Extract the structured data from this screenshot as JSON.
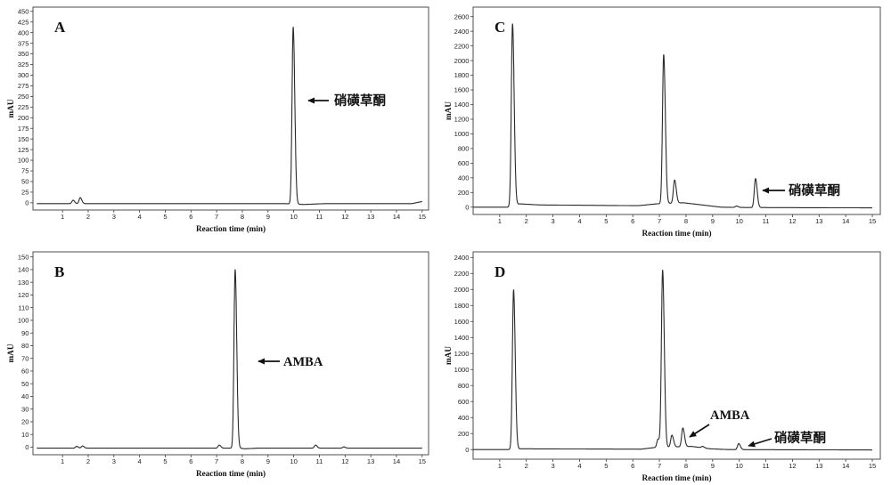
{
  "chart_data": [
    {
      "panel_label": "A",
      "type": "line",
      "xlabel": "Reaction time (min)",
      "ylabel": "mAU",
      "xlim": [
        -0.15,
        15.25
      ],
      "ylim": [
        -17,
        460
      ],
      "xticks": [
        1,
        2,
        3,
        4,
        5,
        6,
        7,
        8,
        9,
        10,
        11,
        12,
        13,
        14,
        15
      ],
      "yticks": [
        0,
        25,
        50,
        75,
        100,
        125,
        150,
        175,
        200,
        225,
        250,
        275,
        300,
        325,
        350,
        375,
        400,
        425,
        450
      ],
      "grid": false,
      "series": [
        {
          "color": "#2a2a2a",
          "baseline": [
            [
              0,
              -2
            ],
            [
              9.7,
              -2
            ],
            [
              10.4,
              -4
            ],
            [
              11.2,
              -2
            ],
            [
              14.6,
              -2
            ],
            [
              15,
              3
            ]
          ],
          "peaks": [
            {
              "time": 1.41,
              "height": 6
            },
            {
              "time": 1.69,
              "height": 12
            },
            {
              "time": 9.98,
              "height": 413
            }
          ]
        }
      ],
      "annotations": [
        {
          "text": "硝磺草酮"
        }
      ]
    },
    {
      "panel_label": "B",
      "type": "line",
      "xlabel": "Reaction time (min)",
      "ylabel": "mAU",
      "xlim": [
        -0.15,
        15.25
      ],
      "ylim": [
        -6,
        154
      ],
      "xticks": [
        1,
        2,
        3,
        4,
        5,
        6,
        7,
        8,
        9,
        10,
        11,
        12,
        13,
        14,
        15
      ],
      "yticks": [
        0,
        10,
        20,
        30,
        40,
        50,
        60,
        70,
        80,
        90,
        100,
        110,
        120,
        130,
        140,
        150
      ],
      "grid": false,
      "series": [
        {
          "color": "#2a2a2a",
          "baseline": [
            [
              0,
              -0.8
            ],
            [
              7.9,
              -0.8
            ],
            [
              8.1,
              -1.3
            ],
            [
              8.6,
              -0.8
            ],
            [
              15,
              -0.8
            ]
          ],
          "peaks": [
            {
              "time": 1.55,
              "height": 0.6
            },
            {
              "time": 1.78,
              "height": 0.9
            },
            {
              "time": 7.1,
              "height": 1.6
            },
            {
              "time": 7.72,
              "height": 140
            },
            {
              "time": 10.85,
              "height": 1.6
            },
            {
              "time": 11.95,
              "height": 0.2
            }
          ]
        }
      ],
      "annotations": [
        {
          "text": "AMBA"
        }
      ]
    },
    {
      "panel_label": "C",
      "type": "line",
      "xlabel": "Reaction time (min)",
      "ylabel": "mAU",
      "xlim": [
        0,
        15.3
      ],
      "ylim": [
        -100,
        2730
      ],
      "xticks": [
        1,
        2,
        3,
        4,
        5,
        6,
        7,
        8,
        9,
        10,
        11,
        12,
        13,
        14,
        15
      ],
      "yticks": [
        0,
        200,
        400,
        600,
        800,
        1000,
        1200,
        1400,
        1600,
        1800,
        2000,
        2200,
        2400,
        2600
      ],
      "grid": false,
      "series": [
        {
          "color": "#2a2a2a",
          "baseline": [
            [
              0,
              0
            ],
            [
              1.3,
              0
            ],
            [
              1.75,
              45
            ],
            [
              2.5,
              30
            ],
            [
              6.2,
              20
            ],
            [
              6.9,
              45
            ],
            [
              7.9,
              60
            ],
            [
              8.6,
              30
            ],
            [
              9.3,
              0
            ],
            [
              10.2,
              -5
            ],
            [
              15,
              -10
            ]
          ],
          "peaks": [
            {
              "time": 1.48,
              "height": 2500
            },
            {
              "time": 7.16,
              "height": 2080
            },
            {
              "time": 7.57,
              "height": 370
            },
            {
              "time": 9.9,
              "height": 15
            },
            {
              "time": 10.61,
              "height": 390
            }
          ]
        }
      ],
      "annotations": [
        {
          "text": "硝磺草酮"
        }
      ]
    },
    {
      "panel_label": "D",
      "type": "line",
      "xlabel": "Reaction time (min)",
      "ylabel": "mAU",
      "xlim": [
        0,
        15.3
      ],
      "ylim": [
        -120,
        2470
      ],
      "xticks": [
        1,
        2,
        3,
        4,
        5,
        6,
        7,
        8,
        9,
        10,
        11,
        12,
        13,
        14,
        15
      ],
      "yticks": [
        0,
        200,
        400,
        600,
        800,
        1000,
        1200,
        1400,
        1600,
        1800,
        2000,
        2200,
        2400
      ],
      "grid": false,
      "series": [
        {
          "color": "#2a2a2a",
          "baseline": [
            [
              0,
              0
            ],
            [
              1.3,
              0
            ],
            [
              1.8,
              10
            ],
            [
              6.3,
              5
            ],
            [
              6.8,
              25
            ],
            [
              8.2,
              40
            ],
            [
              8.9,
              10
            ],
            [
              9.6,
              0
            ],
            [
              15,
              -5
            ]
          ],
          "peaks": [
            {
              "time": 1.52,
              "height": 1995
            },
            {
              "time": 6.95,
              "height": 130
            },
            {
              "time": 7.12,
              "height": 2240
            },
            {
              "time": 7.47,
              "height": 180
            },
            {
              "time": 7.88,
              "height": 270
            },
            {
              "time": 8.62,
              "height": 40
            },
            {
              "time": 9.98,
              "height": 75
            }
          ]
        }
      ],
      "annotations": [
        {
          "text": "AMBA"
        },
        {
          "text": "硝磺草酮"
        }
      ]
    }
  ]
}
